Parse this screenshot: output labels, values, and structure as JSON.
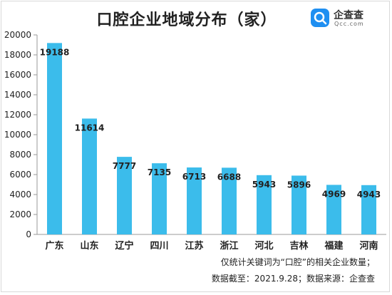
{
  "title": "口腔企业地域分布（家）",
  "logo": {
    "name": "企查查",
    "domain": "Qcc.com",
    "icon": "qcc-logo-icon"
  },
  "notes": {
    "line1": "仅统计关键词为“口腔”的相关企业数量；",
    "line2": "数据截至：2021.9.28；数据来源：企查查"
  },
  "colors": {
    "bar": "#3bbceb",
    "axis": "#999999",
    "text": "#222222"
  },
  "chart_data": {
    "type": "bar",
    "title": "口腔企业地域分布（家）",
    "xlabel": "",
    "ylabel": "",
    "categories": [
      "广东",
      "山东",
      "辽宁",
      "四川",
      "江苏",
      "浙江",
      "河北",
      "吉林",
      "福建",
      "河南"
    ],
    "values": [
      19188,
      11614,
      7777,
      7135,
      6713,
      6688,
      5943,
      5896,
      4969,
      4943
    ],
    "yticks": [
      0,
      2000,
      4000,
      6000,
      8000,
      10000,
      12000,
      14000,
      16000,
      18000,
      20000
    ],
    "ylim": [
      0,
      20000
    ],
    "grid": false,
    "legend": "none",
    "data_labels": true
  }
}
